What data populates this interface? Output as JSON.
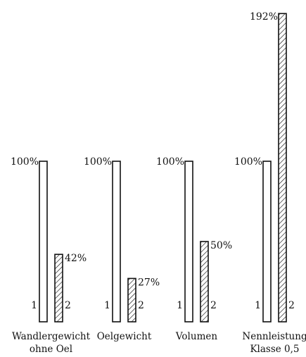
{
  "chart_data": {
    "type": "bar",
    "categories": [
      {
        "lines": [
          "Wandlergewicht",
          "ohne Oel"
        ]
      },
      {
        "lines": [
          "Oelgewicht"
        ]
      },
      {
        "lines": [
          "Volumen"
        ]
      },
      {
        "lines": [
          "Nennleistung",
          "Klasse 0,5"
        ]
      }
    ],
    "series": [
      {
        "marker": "1",
        "values": [
          100,
          100,
          100,
          100
        ],
        "labels": [
          "100%",
          "100%",
          "100%",
          "100%"
        ],
        "fill": "none"
      },
      {
        "marker": "2",
        "values": [
          42,
          27,
          50,
          192
        ],
        "labels": [
          "42%",
          "27%",
          "50%",
          "192%"
        ],
        "fill": "hatched"
      }
    ],
    "ylim": [
      0,
      192
    ],
    "grid": false,
    "colors": {
      "stroke": "#111111",
      "background": "#ffffff"
    }
  }
}
